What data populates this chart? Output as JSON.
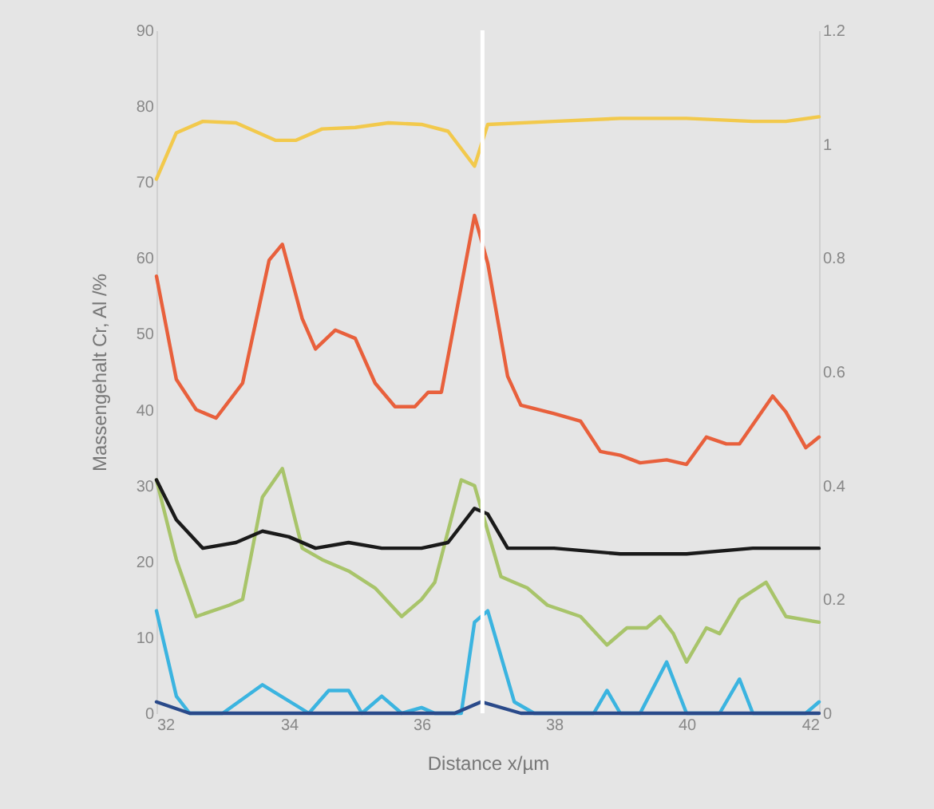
{
  "chart_data": {
    "type": "line",
    "xlabel": "Distance x/µm",
    "ylabel": "Massengehalt Cr, Al /%",
    "xlim": [
      32,
      42
    ],
    "xticks": [
      32,
      34,
      36,
      38,
      40,
      42
    ],
    "ylim": [
      0,
      90
    ],
    "yticks": [
      0,
      10,
      20,
      30,
      40,
      50,
      60,
      70,
      80,
      90
    ],
    "y2lim": [
      0,
      1.2
    ],
    "y2ticks": [
      0,
      0.2,
      0.4,
      0.6,
      0.8,
      1,
      1.2
    ],
    "grid": false,
    "marker": "none",
    "line_style": "solid",
    "ref_lines": [
      {
        "axis": "x",
        "value": 36.92,
        "color": "#ffffff"
      }
    ],
    "series": [
      {
        "color": "#f2c94c",
        "x": [
          32,
          32.3,
          32.7,
          33.2,
          33.8,
          34.1,
          34.5,
          35,
          35.5,
          36,
          36.4,
          36.8,
          37,
          38,
          39,
          40,
          41,
          41.5,
          42
        ],
        "values": [
          70.4,
          76.5,
          78,
          77.8,
          75.5,
          75.5,
          77,
          77.2,
          77.8,
          77.6,
          76.7,
          72.1,
          77.6,
          78,
          78.4,
          78.4,
          78,
          78,
          78.6
        ]
      },
      {
        "color": "#e8603c",
        "x": [
          32,
          32.3,
          32.6,
          32.9,
          33.3,
          33.7,
          33.9,
          34.2,
          34.4,
          34.7,
          35,
          35.3,
          35.6,
          35.9,
          36.1,
          36.3,
          36.8,
          37,
          37.3,
          37.5,
          38,
          38.4,
          38.7,
          39,
          39.3,
          39.7,
          40,
          40.3,
          40.6,
          40.8,
          41.3,
          41.5,
          41.8,
          42
        ],
        "values": [
          57.6,
          44,
          40,
          38.9,
          43.5,
          59.7,
          61.8,
          52,
          48,
          50.5,
          49.4,
          43.5,
          40.4,
          40.4,
          42.3,
          42.3,
          65.6,
          59.3,
          44.4,
          40.6,
          39.5,
          38.5,
          34.5,
          34,
          33,
          33.4,
          32.8,
          36.4,
          35.5,
          35.5,
          41.8,
          39.7,
          35,
          36.4
        ]
      },
      {
        "color": "#a8c46a",
        "axis": "y2",
        "x": [
          32,
          32.3,
          32.6,
          33.1,
          33.3,
          33.6,
          33.9,
          34.2,
          34.5,
          34.9,
          35.3,
          35.7,
          36,
          36.2,
          36.6,
          36.8,
          37.2,
          37.4,
          37.6,
          37.9,
          38.4,
          38.8,
          39.1,
          39.4,
          39.6,
          39.8,
          40,
          40.3,
          40.5,
          40.8,
          41.2,
          41.5,
          42
        ],
        "values": [
          0.41,
          0.27,
          0.17,
          0.19,
          0.2,
          0.38,
          0.43,
          0.29,
          0.27,
          0.25,
          0.22,
          0.17,
          0.2,
          0.23,
          0.41,
          0.4,
          0.24,
          0.23,
          0.22,
          0.19,
          0.17,
          0.12,
          0.15,
          0.15,
          0.17,
          0.14,
          0.09,
          0.15,
          0.14,
          0.2,
          0.23,
          0.17,
          0.16
        ]
      },
      {
        "color": "#1a1a1a",
        "axis": "y2",
        "x": [
          32,
          32.3,
          32.7,
          33.2,
          33.6,
          34,
          34.4,
          34.9,
          35.4,
          36,
          36.4,
          36.8,
          37,
          37.3,
          38,
          39,
          40,
          41,
          42
        ],
        "values": [
          0.41,
          0.34,
          0.29,
          0.3,
          0.32,
          0.31,
          0.29,
          0.3,
          0.29,
          0.29,
          0.3,
          0.36,
          0.35,
          0.29,
          0.29,
          0.28,
          0.28,
          0.29,
          0.29
        ]
      },
      {
        "color": "#3bb4e0",
        "axis": "y2",
        "x": [
          32,
          32.3,
          32.5,
          33,
          33.6,
          34.3,
          34.6,
          34.9,
          35.1,
          35.4,
          35.7,
          36,
          36.2,
          36.6,
          36.8,
          37,
          37.4,
          37.7,
          38.6,
          38.8,
          39,
          39.3,
          39.7,
          40,
          40.5,
          40.8,
          41,
          41.8,
          42
        ],
        "values": [
          0.18,
          0.03,
          0,
          0,
          0.05,
          0,
          0.04,
          0.04,
          0,
          0.03,
          0,
          0.01,
          0,
          0,
          0.16,
          0.18,
          0.02,
          0,
          0,
          0.04,
          0,
          0,
          0.09,
          0,
          0,
          0.06,
          0,
          0,
          0.02
        ]
      },
      {
        "color": "#2a4a8a",
        "axis": "y2",
        "x": [
          32,
          32.5,
          36.5,
          36.9,
          37.5,
          42
        ],
        "values": [
          0.02,
          0,
          0,
          0.02,
          0,
          0
        ]
      }
    ]
  }
}
